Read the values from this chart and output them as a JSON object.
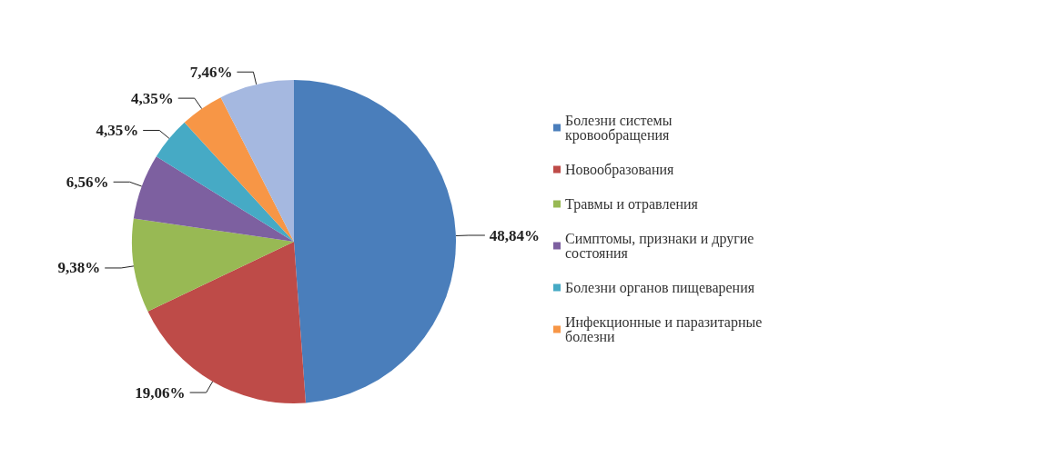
{
  "chart_data": {
    "type": "pie",
    "categories": [
      "Болезни системы кровообращения",
      "Новообразования",
      "Травмы и отравления",
      "Симптомы, признаки и другие состояния",
      "Болезни органов пищеварения",
      "Инфекционные и паразитарные болезни",
      null
    ],
    "values": [
      48.84,
      19.06,
      9.38,
      6.56,
      4.35,
      4.35,
      7.46
    ],
    "value_labels": [
      "48,84%",
      "19,06%",
      "9,38%",
      "6,56%",
      "4,35%",
      "4,35%",
      "7,46%"
    ],
    "colors": [
      "#4a7ebb",
      "#be4b48",
      "#98b954",
      "#7d60a0",
      "#46aac5",
      "#f79646",
      "#a5b8e0"
    ],
    "legend": "right"
  }
}
